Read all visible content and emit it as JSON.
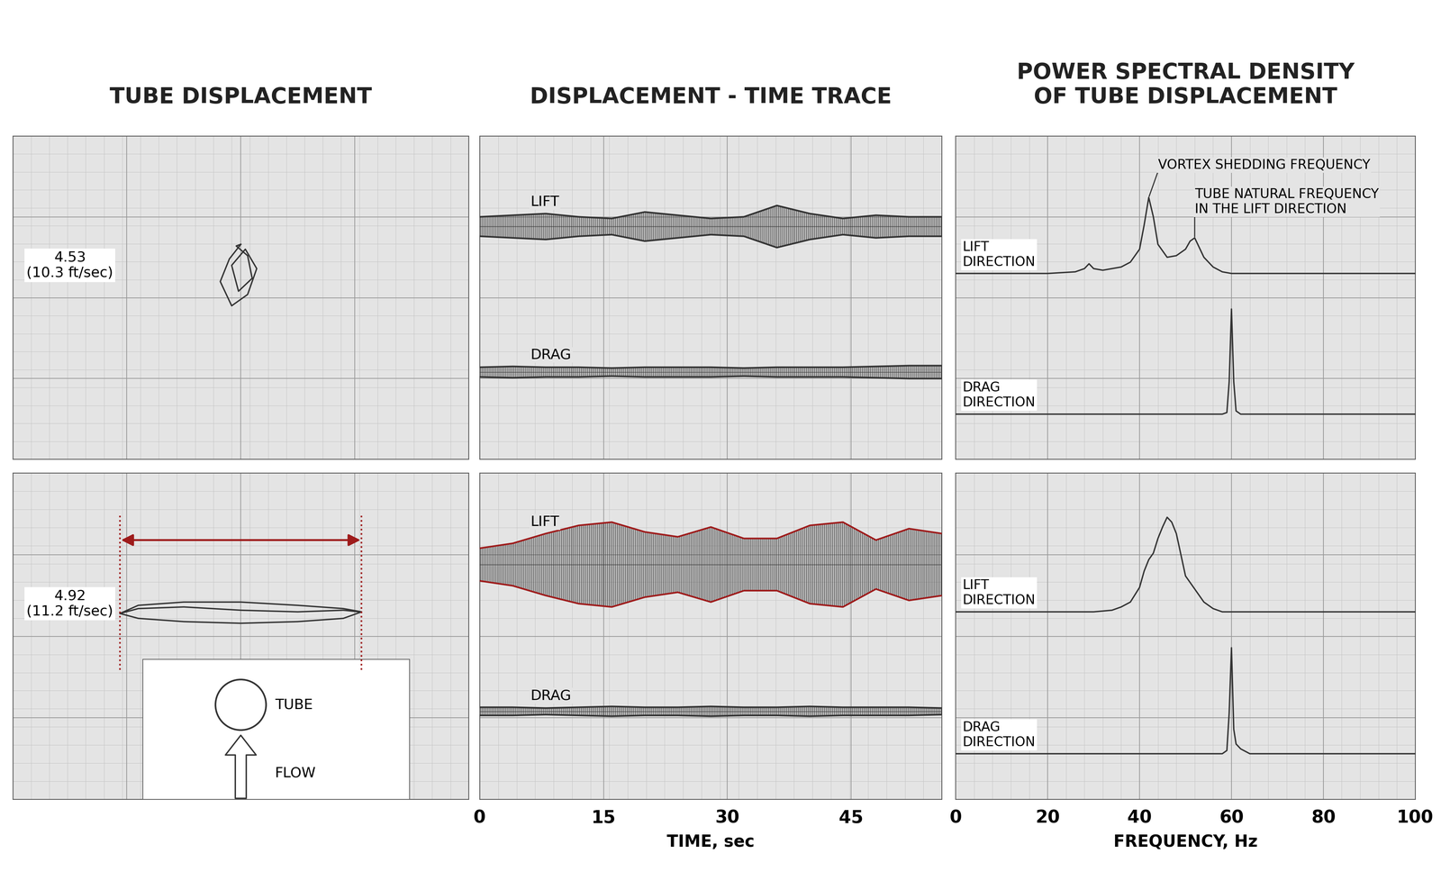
{
  "chart_data": [
    {
      "type": "orbit",
      "title": "TUBE DISPLACEMENT",
      "label": "4.53\n(10.3 ft/sec)",
      "x": [
        0.0,
        -0.5,
        -0.9,
        -0.4,
        0.3,
        0.7,
        0.2,
        -0.4,
        -0.1,
        0.5,
        0.3,
        -0.2,
        0.0
      ],
      "y": [
        3.3,
        2.4,
        1.0,
        -0.5,
        0.2,
        1.8,
        3.0,
        2.0,
        0.4,
        1.2,
        2.6,
        3.2,
        3.3
      ],
      "color": "#333333",
      "xlim": [
        -10,
        10
      ],
      "ylim": [
        -10,
        10
      ],
      "xticks": [
        -10,
        -5,
        0,
        5,
        10
      ],
      "yticks": [
        -10,
        -5,
        0,
        5,
        10
      ],
      "grid": true,
      "tick_labels": false
    },
    {
      "type": "envelope",
      "title": "DISPLACEMENT - TIME TRACE",
      "x": [
        0,
        4,
        8,
        12,
        16,
        20,
        24,
        28,
        32,
        36,
        40,
        44,
        48,
        52,
        56
      ],
      "series": [
        {
          "name": "LIFT",
          "color": "#333333",
          "values": [
            0.6,
            0.7,
            0.8,
            0.6,
            0.5,
            0.9,
            0.7,
            0.5,
            0.6,
            1.3,
            0.8,
            0.5,
            0.7,
            0.6,
            0.6
          ]
        },
        {
          "name": "DRAG",
          "color": "#333333",
          "values": [
            0.3,
            0.35,
            0.3,
            0.3,
            0.25,
            0.3,
            0.3,
            0.3,
            0.25,
            0.3,
            0.3,
            0.3,
            0.35,
            0.4,
            0.4
          ]
        }
      ],
      "xlim": [
        0,
        56
      ],
      "ylim": [
        -10,
        10
      ],
      "xticks": [
        0,
        15,
        30,
        45
      ],
      "yticks": [
        -10,
        -5,
        0,
        5,
        10
      ],
      "grid": true,
      "tick_labels": false
    },
    {
      "type": "line",
      "title": "POWER SPECTRAL DENSITY\nOF TUBE DISPLACEMENT",
      "series": [
        {
          "name": "LIFT\nDIRECTION",
          "color": "#333333",
          "x": [
            0,
            20,
            26,
            28,
            29,
            30,
            32,
            36,
            38,
            40,
            41,
            42,
            43,
            44,
            46,
            48,
            50,
            51,
            52,
            53,
            54,
            56,
            58,
            60,
            100
          ],
          "values": [
            0,
            0,
            0.1,
            0.3,
            0.6,
            0.3,
            0.2,
            0.4,
            0.7,
            1.5,
            3.0,
            4.7,
            3.5,
            1.8,
            1.0,
            1.1,
            1.5,
            2.0,
            2.2,
            1.6,
            1.0,
            0.4,
            0.1,
            0,
            0
          ]
        },
        {
          "name": "DRAG\nDIRECTION",
          "color": "#333333",
          "x": [
            0,
            58,
            59,
            59.5,
            60,
            60.5,
            61,
            62,
            100
          ],
          "values": [
            0,
            0,
            0.1,
            2.0,
            6.5,
            2.0,
            0.2,
            0,
            0
          ]
        }
      ],
      "annotations": [
        {
          "text": "VORTEX SHEDDING FREQUENCY",
          "x": 42
        },
        {
          "text": "TUBE NATURAL FREQUENCY\nIN THE LIFT DIRECTION",
          "x": 52
        }
      ],
      "xlim": [
        0,
        100
      ],
      "ylim": [
        0,
        20
      ],
      "xticks": [
        0,
        20,
        40,
        60,
        80,
        100
      ],
      "yticks": [
        0,
        5,
        10,
        15,
        20
      ],
      "grid": true,
      "tick_labels": false
    },
    {
      "type": "orbit",
      "label": "4.92\n(11.2 ft/sec)",
      "x": [
        -5.3,
        -4.5,
        -2.5,
        0,
        2.5,
        4.5,
        5.3,
        4.5,
        2.5,
        0,
        -2.5,
        -4.5,
        -5.3,
        -4.5,
        -2.5,
        0,
        2.5,
        4.5,
        5.2
      ],
      "y": [
        1.4,
        1.9,
        2.1,
        2.1,
        1.9,
        1.7,
        1.5,
        1.1,
        0.9,
        0.8,
        0.9,
        1.1,
        1.4,
        1.7,
        1.8,
        1.6,
        1.5,
        1.6,
        1.5
      ],
      "color": "#333333",
      "diagram": {
        "object": "TUBE",
        "flow": "FLOW"
      },
      "xlim": [
        -10,
        10
      ],
      "ylim": [
        -10,
        10
      ],
      "xticks": [
        -10,
        -5,
        0,
        5,
        10
      ],
      "yticks": [
        -10,
        -5,
        0,
        5,
        10
      ],
      "grid": true,
      "tick_labels": false
    },
    {
      "type": "envelope",
      "xlabel": "TIME, sec",
      "x": [
        0,
        4,
        8,
        12,
        16,
        20,
        24,
        28,
        32,
        36,
        40,
        44,
        48,
        52,
        56
      ],
      "series": [
        {
          "name": "LIFT",
          "color": "#9e1b1b",
          "values": [
            1.0,
            1.3,
            1.9,
            2.4,
            2.6,
            2.0,
            1.7,
            2.3,
            1.6,
            1.6,
            2.4,
            2.6,
            1.5,
            2.2,
            1.9
          ]
        },
        {
          "name": "DRAG",
          "color": "#333333",
          "values": [
            0.25,
            0.25,
            0.2,
            0.25,
            0.3,
            0.25,
            0.25,
            0.3,
            0.25,
            0.25,
            0.3,
            0.25,
            0.25,
            0.25,
            0.2
          ]
        }
      ],
      "xlim": [
        0,
        56
      ],
      "ylim": [
        -10,
        10
      ],
      "xticks": [
        0,
        15,
        30,
        45
      ],
      "yticks": [
        -10,
        -5,
        0,
        5,
        10
      ],
      "grid": true,
      "tick_labels": "x"
    },
    {
      "type": "line",
      "xlabel": "FREQUENCY, Hz",
      "series": [
        {
          "name": "LIFT\nDIRECTION",
          "color": "#333333",
          "x": [
            0,
            30,
            34,
            36,
            38,
            40,
            41,
            42,
            43,
            44,
            45,
            46,
            47,
            48,
            49,
            50,
            52,
            54,
            56,
            58,
            100
          ],
          "values": [
            0,
            0,
            0.1,
            0.3,
            0.6,
            1.5,
            2.5,
            3.2,
            3.6,
            4.5,
            5.2,
            5.8,
            5.5,
            4.8,
            3.5,
            2.2,
            1.4,
            0.6,
            0.2,
            0,
            0
          ]
        },
        {
          "name": "DRAG\nDIRECTION",
          "color": "#333333",
          "x": [
            0,
            58,
            59,
            59.5,
            60,
            60.5,
            61,
            62,
            64,
            100
          ],
          "values": [
            0,
            0,
            0.2,
            2.5,
            6.5,
            1.5,
            0.6,
            0.3,
            0,
            0
          ]
        }
      ],
      "xlim": [
        0,
        100
      ],
      "ylim": [
        0,
        20
      ],
      "xticks": [
        0,
        20,
        40,
        60,
        80,
        100
      ],
      "yticks": [
        0,
        5,
        10,
        15,
        20
      ],
      "grid": true,
      "tick_labels": "x"
    }
  ]
}
